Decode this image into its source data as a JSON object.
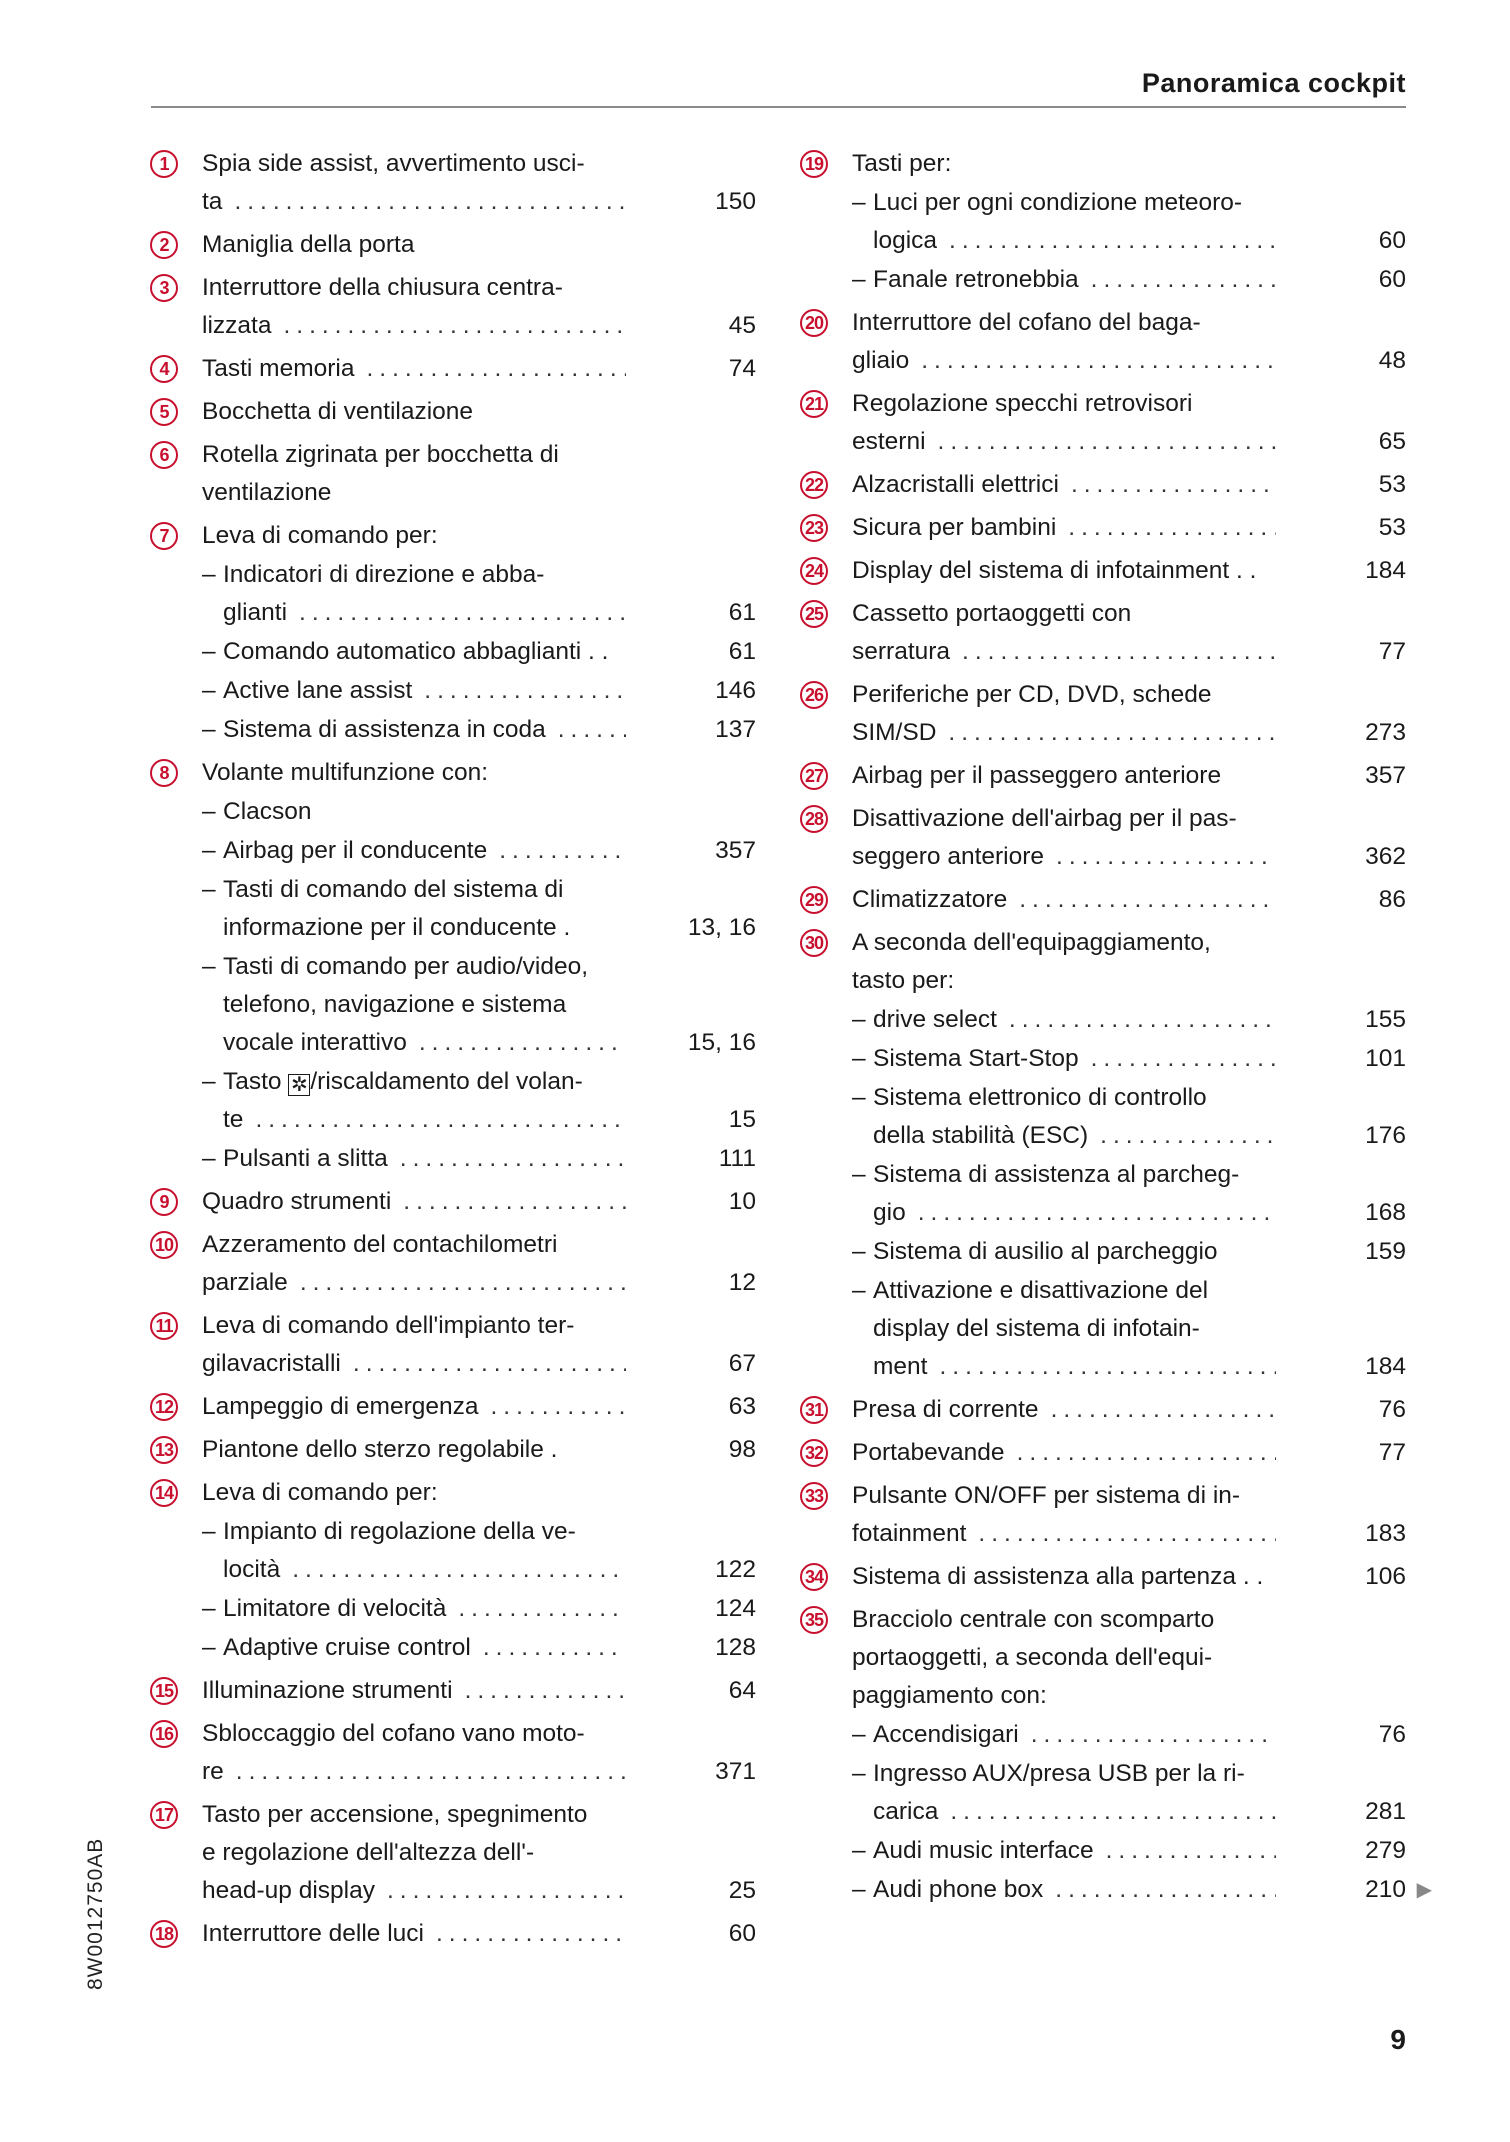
{
  "header": {
    "title": "Panoramica cockpit"
  },
  "footer": {
    "page_number": "9",
    "doc_code": "8W0012750AB"
  },
  "colors": {
    "accent": "#c8102e",
    "text": "#1a1a1a",
    "rule": "#8a8a8a"
  },
  "left_column": [
    {
      "num": "1",
      "lines": [
        "Spia side assist, avvertimento usci-",
        "ta"
      ],
      "page": "150"
    },
    {
      "num": "2",
      "lines": [
        "Maniglia della porta"
      ],
      "page": ""
    },
    {
      "num": "3",
      "lines": [
        "Interruttore della chiusura centra-",
        "lizzata"
      ],
      "page": "45"
    },
    {
      "num": "4",
      "lines": [
        "Tasti memoria"
      ],
      "page": "74"
    },
    {
      "num": "5",
      "lines": [
        "Bocchetta di ventilazione"
      ],
      "page": ""
    },
    {
      "num": "6",
      "lines": [
        "Rotella zigrinata per bocchetta di",
        "ventilazione"
      ],
      "page": ""
    },
    {
      "num": "7",
      "lines": [
        "Leva di comando per:"
      ],
      "page": "",
      "subs": [
        {
          "lines": [
            "Indicatori di direzione e abba-",
            "glianti"
          ],
          "page": "61"
        },
        {
          "lines": [
            "Comando automatico abbaglianti . ."
          ],
          "page": "61",
          "noleader": true
        },
        {
          "lines": [
            "Active lane assist"
          ],
          "page": "146"
        },
        {
          "lines": [
            "Sistema di assistenza in coda"
          ],
          "page": "137"
        }
      ]
    },
    {
      "num": "8",
      "lines": [
        "Volante multifunzione con:"
      ],
      "page": "",
      "subs": [
        {
          "lines": [
            "Clacson"
          ],
          "page": ""
        },
        {
          "lines": [
            "Airbag per il conducente"
          ],
          "page": "357"
        },
        {
          "lines": [
            "Tasti di comando del sistema di",
            "informazione per il conducente ."
          ],
          "page": "13, 16",
          "noleader": true
        },
        {
          "lines": [
            "Tasti di comando per audio/video,",
            "telefono, navigazione e sistema",
            "vocale interattivo"
          ],
          "page": "15, 16"
        },
        {
          "lines": [
            "Tasto ",
            "te"
          ],
          "icon_line": {
            "prefix": "Tasto ",
            "icon": "✲",
            "icon_name": "defrost-button-icon",
            "suffix": "/riscaldamento del volan-"
          },
          "page": "15"
        },
        {
          "lines": [
            "Pulsanti a slitta"
          ],
          "page": "111"
        }
      ]
    },
    {
      "num": "9",
      "lines": [
        "Quadro strumenti"
      ],
      "page": "10"
    },
    {
      "num": "10",
      "lines": [
        "Azzeramento del contachilometri",
        "parziale"
      ],
      "page": "12"
    },
    {
      "num": "11",
      "lines": [
        "Leva di comando dell'impianto ter-",
        "gilavacristalli"
      ],
      "page": "67"
    },
    {
      "num": "12",
      "lines": [
        "Lampeggio di emergenza"
      ],
      "page": "63"
    },
    {
      "num": "13",
      "lines": [
        "Piantone dello sterzo regolabile  ."
      ],
      "page": "98",
      "noleader": true
    },
    {
      "num": "14",
      "lines": [
        "Leva di comando per:"
      ],
      "page": "",
      "subs": [
        {
          "lines": [
            "Impianto di regolazione della ve-",
            "locità"
          ],
          "page": "122"
        },
        {
          "lines": [
            "Limitatore di velocità"
          ],
          "page": "124"
        },
        {
          "lines": [
            "Adaptive cruise control"
          ],
          "page": "128"
        }
      ]
    },
    {
      "num": "15",
      "lines": [
        "Illuminazione strumenti"
      ],
      "page": "64"
    },
    {
      "num": "16",
      "lines": [
        "Sbloccaggio del cofano vano moto-",
        "re"
      ],
      "page": "371"
    },
    {
      "num": "17",
      "lines": [
        "Tasto per accensione, spegnimento",
        "e regolazione dell'altezza dell'-",
        "head-up display"
      ],
      "page": "25"
    },
    {
      "num": "18",
      "lines": [
        "Interruttore delle luci"
      ],
      "page": "60"
    }
  ],
  "right_column": [
    {
      "num": "19",
      "lines": [
        "Tasti per:"
      ],
      "page": "",
      "subs": [
        {
          "lines": [
            "Luci per ogni condizione meteoro-",
            "logica"
          ],
          "page": "60"
        },
        {
          "lines": [
            "Fanale retronebbia"
          ],
          "page": "60"
        }
      ]
    },
    {
      "num": "20",
      "lines": [
        "Interruttore del cofano del baga-",
        "gliaio"
      ],
      "page": "48"
    },
    {
      "num": "21",
      "lines": [
        "Regolazione specchi retrovisori",
        "esterni"
      ],
      "page": "65"
    },
    {
      "num": "22",
      "lines": [
        "Alzacristalli elettrici"
      ],
      "page": "53"
    },
    {
      "num": "23",
      "lines": [
        "Sicura per bambini"
      ],
      "page": "53"
    },
    {
      "num": "24",
      "lines": [
        "Display del sistema di infotainment . ."
      ],
      "page": "184",
      "noleader": true
    },
    {
      "num": "25",
      "lines": [
        "Cassetto portaoggetti con",
        "serratura"
      ],
      "page": "77"
    },
    {
      "num": "26",
      "lines": [
        "Periferiche per CD, DVD, schede",
        "SIM/SD"
      ],
      "page": "273"
    },
    {
      "num": "27",
      "lines": [
        "Airbag per il passeggero anteriore"
      ],
      "page": "357",
      "noleader": true
    },
    {
      "num": "28",
      "lines": [
        "Disattivazione dell'airbag per il pas-",
        "seggero anteriore"
      ],
      "page": "362"
    },
    {
      "num": "29",
      "lines": [
        "Climatizzatore"
      ],
      "page": "86"
    },
    {
      "num": "30",
      "lines": [
        "A seconda dell'equipaggiamento,",
        "tasto per:"
      ],
      "page": "",
      "subs": [
        {
          "lines": [
            "drive select"
          ],
          "page": "155"
        },
        {
          "lines": [
            "Sistema Start-Stop"
          ],
          "page": "101"
        },
        {
          "lines": [
            "Sistema elettronico di controllo",
            "della stabilità (ESC)"
          ],
          "page": "176"
        },
        {
          "lines": [
            "Sistema di assistenza al parcheg-",
            "gio"
          ],
          "page": "168"
        },
        {
          "lines": [
            "Sistema di ausilio al parcheggio"
          ],
          "page": "159",
          "noleader": true
        },
        {
          "lines": [
            "Attivazione e disattivazione del",
            "display del sistema di infotain-",
            "ment"
          ],
          "page": "184"
        }
      ]
    },
    {
      "num": "31",
      "lines": [
        "Presa di corrente"
      ],
      "page": "76"
    },
    {
      "num": "32",
      "lines": [
        "Portabevande"
      ],
      "page": "77"
    },
    {
      "num": "33",
      "lines": [
        "Pulsante ON/OFF per sistema di in-",
        "fotainment"
      ],
      "page": "183"
    },
    {
      "num": "34",
      "lines": [
        "Sistema di assistenza alla partenza . ."
      ],
      "page": "106",
      "noleader": true
    },
    {
      "num": "35",
      "lines": [
        "Bracciolo centrale con scomparto",
        "portaoggetti, a seconda dell'equi-",
        "paggiamento con:"
      ],
      "page": "",
      "subs": [
        {
          "lines": [
            "Accendisigari"
          ],
          "page": "76"
        },
        {
          "lines": [
            "Ingresso AUX/presa USB per la ri-",
            "carica"
          ],
          "page": "281"
        },
        {
          "lines": [
            "Audi music interface"
          ],
          "page": "279"
        },
        {
          "lines": [
            "Audi phone box"
          ],
          "page": "210",
          "continued": "▶"
        }
      ]
    }
  ]
}
